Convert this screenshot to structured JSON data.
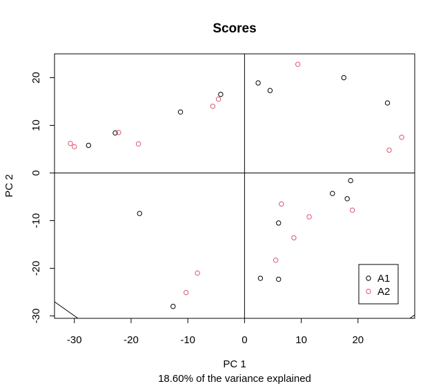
{
  "chart_data": {
    "type": "scatter",
    "title": "Scores",
    "xlabel": "PC 1",
    "xlabel_sub": "18.60% of the variance explained",
    "ylabel": "PC 2",
    "xlim": [
      -33.5,
      30
    ],
    "ylim": [
      -30.5,
      25
    ],
    "x_ticks": [
      -30,
      -20,
      -10,
      0,
      10,
      20
    ],
    "y_ticks": [
      -30,
      -20,
      -10,
      0,
      10,
      20
    ],
    "reference_lines": {
      "x": 0,
      "y": 0
    },
    "grid": false,
    "legend_position": "bottom-right",
    "series": [
      {
        "name": "A1",
        "color": "#000000",
        "marker": "open-circle",
        "points": [
          [
            -27.5,
            5.8
          ],
          [
            -22.8,
            8.4
          ],
          [
            -11.3,
            12.8
          ],
          [
            -4.2,
            16.5
          ],
          [
            -18.5,
            -8.5
          ],
          [
            -12.6,
            -28.0
          ],
          [
            2.4,
            18.9
          ],
          [
            4.5,
            17.3
          ],
          [
            17.5,
            20.0
          ],
          [
            25.2,
            14.7
          ],
          [
            15.5,
            -4.3
          ],
          [
            18.1,
            -5.4
          ],
          [
            18.7,
            -1.6
          ],
          [
            6.0,
            -10.5
          ],
          [
            2.8,
            -22.1
          ],
          [
            6.0,
            -22.3
          ]
        ]
      },
      {
        "name": "A2",
        "color": "#DF536B",
        "marker": "open-circle",
        "points": [
          [
            -30.7,
            6.2
          ],
          [
            -30.0,
            5.5
          ],
          [
            -22.2,
            8.5
          ],
          [
            -18.7,
            6.1
          ],
          [
            -5.6,
            14.0
          ],
          [
            -4.6,
            15.5
          ],
          [
            9.4,
            22.8
          ],
          [
            27.7,
            7.5
          ],
          [
            25.5,
            4.8
          ],
          [
            6.5,
            -6.5
          ],
          [
            11.4,
            -9.2
          ],
          [
            19.0,
            -7.8
          ],
          [
            8.7,
            -13.6
          ],
          [
            5.5,
            -18.3
          ],
          [
            -8.3,
            -21.0
          ],
          [
            -10.3,
            -25.1
          ]
        ]
      }
    ]
  }
}
